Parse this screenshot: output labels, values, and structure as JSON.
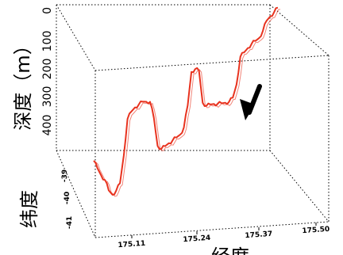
{
  "chart_data": {
    "type": "line",
    "projection": "3d",
    "ylabel": "深度（m）",
    "xlabel": "经度",
    "zlabel": "纬度",
    "y_ticks": [
      "0",
      "100",
      "200",
      "300",
      "400"
    ],
    "ylim": [
      0,
      450
    ],
    "y_inverted": true,
    "x_ticks": [
      "175.11",
      "175.24",
      "175.37",
      "175.50"
    ],
    "lat_ticks": [
      "-39",
      "-40",
      "-41"
    ],
    "line_color": "#e8321e",
    "grid": false,
    "box": "dotted",
    "annotation": "arrow",
    "depth_profile": [
      [
        1,
        300
      ],
      [
        2,
        330
      ],
      [
        3,
        360
      ],
      [
        4,
        380
      ],
      [
        5,
        420
      ],
      [
        6,
        440
      ],
      [
        7,
        430
      ],
      [
        8,
        410
      ],
      [
        9,
        320
      ],
      [
        10,
        200
      ],
      [
        11,
        180
      ],
      [
        12,
        170
      ],
      [
        13,
        165
      ],
      [
        14,
        160
      ],
      [
        15,
        165
      ],
      [
        16,
        170
      ],
      [
        17,
        230
      ],
      [
        18,
        330
      ],
      [
        19,
        345
      ],
      [
        20,
        340
      ],
      [
        21,
        335
      ],
      [
        22,
        330
      ],
      [
        23,
        325
      ],
      [
        24,
        320
      ],
      [
        25,
        300
      ],
      [
        26,
        230
      ],
      [
        27,
        120
      ],
      [
        28,
        115
      ],
      [
        29,
        125
      ],
      [
        30,
        240
      ],
      [
        31,
        255
      ],
      [
        32,
        255
      ],
      [
        33,
        258
      ],
      [
        34,
        262
      ],
      [
        35,
        265
      ],
      [
        36,
        268
      ],
      [
        37,
        270
      ],
      [
        38,
        260
      ],
      [
        39,
        220
      ],
      [
        40,
        130
      ],
      [
        41,
        120
      ],
      [
        42,
        110
      ],
      [
        43,
        100
      ],
      [
        44,
        95
      ],
      [
        45,
        90
      ],
      [
        46,
        70
      ],
      [
        47,
        40
      ],
      [
        48,
        30
      ],
      [
        49,
        20
      ],
      [
        50,
        10
      ]
    ]
  }
}
